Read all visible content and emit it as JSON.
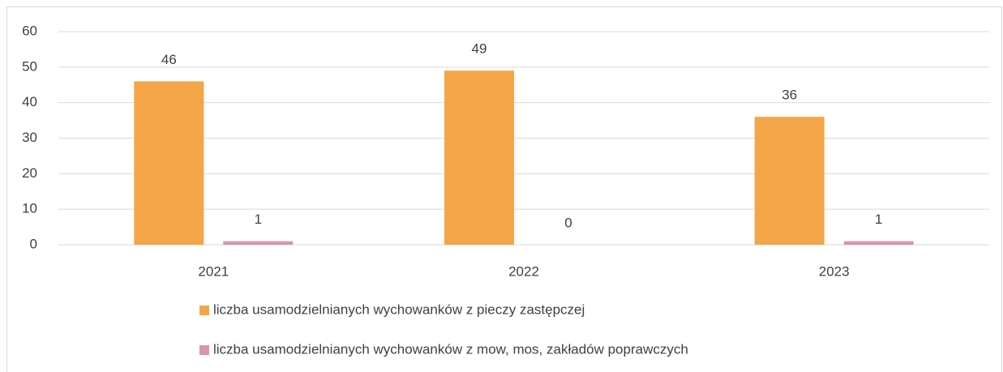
{
  "chart_data": {
    "type": "bar",
    "categories": [
      "2021",
      "2022",
      "2023"
    ],
    "series": [
      {
        "name": "liczba usamodzielnianych wychowanków z pieczy zastępczej",
        "color": "#f4a547",
        "values": [
          46,
          49,
          36
        ]
      },
      {
        "name": "liczba usamodzielnianych wychowanków z mow, mos, zakładów poprawczych",
        "color": "#d995ab",
        "values": [
          1,
          0,
          1
        ]
      }
    ],
    "ylim": [
      0,
      60
    ],
    "yticks": [
      0,
      10,
      20,
      30,
      40,
      50,
      60
    ],
    "grid": true,
    "legend": "bottom"
  }
}
